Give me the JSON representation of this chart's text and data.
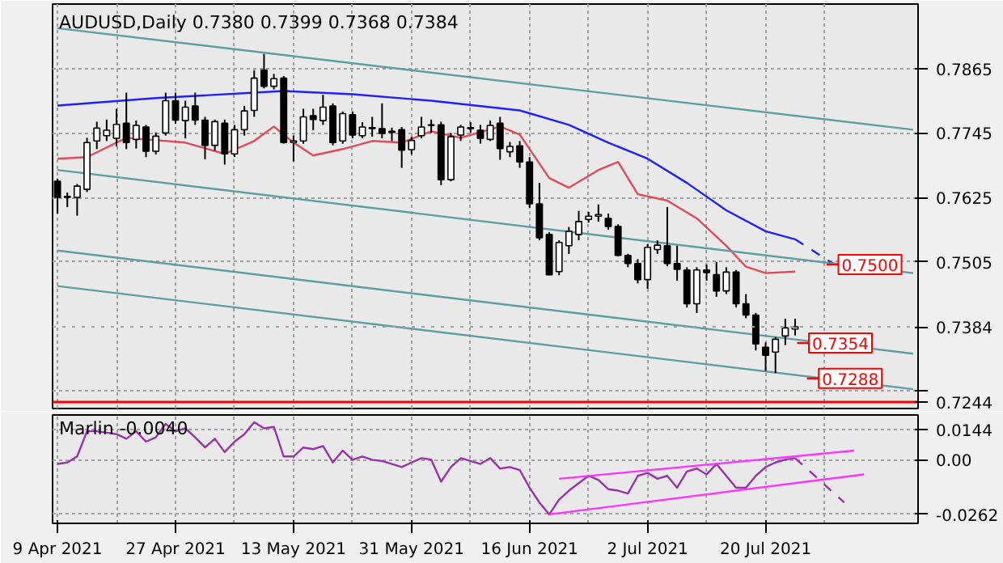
{
  "chart_data": [
    {
      "type": "candlestick",
      "title": "AUDUSD,Daily 0.7380 0.7399 0.7368 0.7384",
      "categories": [
        null,
        null,
        null,
        null,
        null,
        null,
        null,
        null,
        null,
        null,
        null,
        null,
        null,
        null,
        null,
        null,
        null,
        null,
        null,
        null,
        null,
        null,
        null,
        null,
        null,
        null,
        null,
        null,
        null,
        null,
        null,
        null,
        null,
        null,
        null,
        null,
        null,
        null,
        null,
        null,
        null,
        null,
        null,
        null,
        null,
        null,
        null,
        null,
        null,
        null,
        null,
        null,
        null,
        null,
        null,
        null,
        null,
        null,
        null,
        null,
        null,
        null,
        null,
        null,
        null,
        null,
        null,
        null,
        null,
        null,
        null,
        null,
        null,
        null,
        null,
        null,
        null,
        null,
        null,
        null,
        null,
        null,
        null,
        null,
        null,
        null,
        null,
        null
      ],
      "ohlc": [
        [
          0.7655,
          0.766,
          0.7595,
          0.7625
        ],
        [
          0.7627,
          0.7634,
          0.7607,
          0.7625
        ],
        [
          0.7625,
          0.765,
          0.7591,
          0.7646
        ],
        [
          0.764,
          0.7736,
          0.7635,
          0.7727
        ],
        [
          0.773,
          0.7766,
          0.7715,
          0.7754
        ],
        [
          0.774,
          0.777,
          0.773,
          0.775
        ],
        [
          0.7735,
          0.779,
          0.772,
          0.7761
        ],
        [
          0.7763,
          0.782,
          0.7715,
          0.7727
        ],
        [
          0.7733,
          0.7768,
          0.7716,
          0.7759
        ],
        [
          0.7756,
          0.776,
          0.77,
          0.7711
        ],
        [
          0.7711,
          0.7746,
          0.7705,
          0.7739
        ],
        [
          0.7745,
          0.782,
          0.774,
          0.7805
        ],
        [
          0.7805,
          0.782,
          0.7762,
          0.7769
        ],
        [
          0.7768,
          0.7805,
          0.7735,
          0.7793
        ],
        [
          0.7795,
          0.782,
          0.776,
          0.7769
        ],
        [
          0.7769,
          0.7775,
          0.7696,
          0.7722
        ],
        [
          0.7722,
          0.777,
          0.7712,
          0.7766
        ],
        [
          0.7763,
          0.777,
          0.7686,
          0.7706
        ],
        [
          0.7706,
          0.776,
          0.77,
          0.7751
        ],
        [
          0.7751,
          0.7795,
          0.774,
          0.7786
        ],
        [
          0.7787,
          0.7862,
          0.7775,
          0.7847
        ],
        [
          0.7862,
          0.7892,
          0.7828,
          0.7832
        ],
        [
          0.7832,
          0.7855,
          0.7826,
          0.7846
        ],
        [
          0.7847,
          0.7851,
          0.7725,
          0.7727
        ],
        [
          0.7727,
          0.774,
          0.7692,
          0.773
        ],
        [
          0.773,
          0.779,
          0.7725,
          0.7775
        ],
        [
          0.7777,
          0.779,
          0.775,
          0.777
        ],
        [
          0.7768,
          0.7816,
          0.776,
          0.7793
        ],
        [
          0.7795,
          0.78,
          0.7722,
          0.7727
        ],
        [
          0.773,
          0.7785,
          0.7725,
          0.7781
        ],
        [
          0.7779,
          0.7785,
          0.7735,
          0.7741
        ],
        [
          0.774,
          0.7765,
          0.7735,
          0.7756
        ],
        [
          0.7755,
          0.7775,
          0.7738,
          0.7753
        ],
        [
          0.7753,
          0.78,
          0.7735,
          0.7744
        ],
        [
          0.7748,
          0.7755,
          0.773,
          0.7746
        ],
        [
          0.7751,
          0.7756,
          0.768,
          0.7713
        ],
        [
          0.7714,
          0.7738,
          0.7705,
          0.7731
        ],
        [
          0.774,
          0.7775,
          0.7735,
          0.7756
        ],
        [
          0.776,
          0.777,
          0.7745,
          0.7759
        ],
        [
          0.776,
          0.7766,
          0.7648,
          0.7658
        ],
        [
          0.7658,
          0.7745,
          0.7655,
          0.7738
        ],
        [
          0.7741,
          0.776,
          0.773,
          0.7756
        ],
        [
          0.7755,
          0.7765,
          0.7745,
          0.7753
        ],
        [
          0.775,
          0.776,
          0.7725,
          0.7735
        ],
        [
          0.7733,
          0.7768,
          0.773,
          0.7759
        ],
        [
          0.7763,
          0.7775,
          0.7695,
          0.7716
        ],
        [
          0.771,
          0.7728,
          0.77,
          0.772
        ],
        [
          0.7721,
          0.773,
          0.768,
          0.7691
        ],
        [
          0.7691,
          0.77,
          0.7605,
          0.7613
        ],
        [
          0.7613,
          0.7652,
          0.7545,
          0.755
        ],
        [
          0.7556,
          0.756,
          0.748,
          0.7481
        ],
        [
          0.7487,
          0.7545,
          0.748,
          0.7541
        ],
        [
          0.7535,
          0.757,
          0.752,
          0.7562
        ],
        [
          0.7556,
          0.76,
          0.7545,
          0.758
        ],
        [
          0.7584,
          0.7598,
          0.7578,
          0.759
        ],
        [
          0.759,
          0.7612,
          0.758,
          0.7593
        ],
        [
          0.7586,
          0.7595,
          0.7565,
          0.7571
        ],
        [
          0.7571,
          0.7575,
          0.7515,
          0.7517
        ],
        [
          0.7517,
          0.752,
          0.7495,
          0.7502
        ],
        [
          0.7502,
          0.751,
          0.7465,
          0.7472
        ],
        [
          0.7472,
          0.7538,
          0.7455,
          0.7532
        ],
        [
          0.7528,
          0.7545,
          0.752,
          0.7536
        ],
        [
          0.7535,
          0.7607,
          0.7497,
          0.7502
        ],
        [
          0.7502,
          0.7535,
          0.747,
          0.7491
        ],
        [
          0.749,
          0.7495,
          0.742,
          0.7427
        ],
        [
          0.7427,
          0.7495,
          0.741,
          0.749
        ],
        [
          0.749,
          0.75,
          0.747,
          0.7485
        ],
        [
          0.7481,
          0.7505,
          0.744,
          0.7451
        ],
        [
          0.7451,
          0.7495,
          0.7445,
          0.7486
        ],
        [
          0.7486,
          0.749,
          0.742,
          0.7427
        ],
        [
          0.7427,
          0.7445,
          0.74,
          0.7406
        ],
        [
          0.7406,
          0.741,
          0.734,
          0.7352
        ],
        [
          0.7346,
          0.7355,
          0.7302,
          0.7331
        ],
        [
          0.7337,
          0.7365,
          0.7298,
          0.7361
        ],
        [
          0.7367,
          0.7399,
          0.735,
          0.7382
        ],
        [
          0.738,
          0.7399,
          0.7368,
          0.7384
        ],
        null,
        null,
        null,
        null,
        null,
        null,
        null,
        null,
        null,
        null,
        null,
        null
      ],
      "series": [
        {
          "type": "line",
          "color": "#2020ff",
          "values": [
            0.7796,
            null,
            null,
            null,
            null,
            null,
            null,
            null,
            null,
            null,
            0.781,
            null,
            null,
            null,
            null,
            null,
            null,
            null,
            null,
            null,
            0.782,
            null,
            null,
            0.7823,
            null,
            null,
            null,
            null,
            null,
            null,
            0.7817,
            null,
            null,
            null,
            null,
            null,
            null,
            null,
            0.7805,
            null,
            null,
            null,
            null,
            null,
            null,
            null,
            null,
            0.7787,
            null,
            null,
            null,
            null,
            0.776,
            null,
            null,
            null,
            0.7727,
            null,
            null,
            null,
            0.7697,
            null,
            null,
            null,
            0.7652,
            null,
            null,
            null,
            0.7601,
            null,
            null,
            null,
            0.7562,
            null,
            null,
            0.7547,
            null,
            null,
            null,
            null,
            null,
            null,
            null,
            null,
            null,
            null,
            null,
            null
          ]
        },
        {
          "type": "line",
          "color": "#2020ff",
          "line_style": "dashed",
          "values": [
            null,
            null,
            null,
            null,
            null,
            null,
            null,
            null,
            null,
            null,
            null,
            null,
            null,
            null,
            null,
            null,
            null,
            null,
            null,
            null,
            null,
            null,
            null,
            null,
            null,
            null,
            null,
            null,
            null,
            null,
            null,
            null,
            null,
            null,
            null,
            null,
            null,
            null,
            null,
            null,
            null,
            null,
            null,
            null,
            null,
            null,
            null,
            null,
            null,
            null,
            null,
            null,
            null,
            null,
            null,
            null,
            null,
            null,
            null,
            null,
            null,
            null,
            null,
            null,
            null,
            null,
            null,
            null,
            null,
            null,
            null,
            null,
            null,
            null,
            null,
            0.7547,
            null,
            null,
            null,
            0.75,
            null,
            null,
            null,
            null,
            null,
            null,
            null,
            null
          ]
        },
        {
          "type": "line",
          "color": "#e04a5a",
          "values": [
            0.7697,
            null,
            null,
            0.77,
            null,
            null,
            null,
            0.7736,
            null,
            null,
            null,
            null,
            null,
            0.7727,
            null,
            null,
            null,
            0.7706,
            null,
            null,
            0.773,
            null,
            0.7757,
            null,
            0.7727,
            null,
            0.7703,
            null,
            null,
            0.7715,
            null,
            null,
            0.773,
            null,
            null,
            0.7727,
            null,
            null,
            0.7748,
            null,
            null,
            0.7736,
            null,
            null,
            null,
            0.7757,
            null,
            0.7742,
            null,
            null,
            0.7661,
            null,
            0.7643,
            null,
            null,
            0.7676,
            null,
            0.7691,
            null,
            0.7631,
            null,
            null,
            0.7619,
            null,
            null,
            0.7586,
            null,
            null,
            0.7535,
            null,
            0.7496,
            null,
            0.7484,
            null,
            null,
            0.7487,
            null,
            null,
            null,
            null,
            null,
            null,
            null,
            null,
            null,
            null,
            null,
            null
          ]
        },
        {
          "type": "line",
          "color": "#5f9ea0",
          "values": [
            0.794,
            null,
            null,
            null,
            null,
            null,
            null,
            null,
            null,
            null,
            null,
            null,
            null,
            null,
            null,
            null,
            null,
            null,
            null,
            null,
            null,
            null,
            null,
            null,
            null,
            null,
            null,
            null,
            null,
            null,
            null,
            null,
            null,
            null,
            null,
            null,
            null,
            null,
            null,
            null,
            null,
            null,
            null,
            null,
            null,
            null,
            null,
            null,
            null,
            null,
            null,
            null,
            null,
            null,
            null,
            null,
            null,
            null,
            null,
            null,
            null,
            null,
            null,
            null,
            null,
            null,
            null,
            null,
            null,
            null,
            null,
            null,
            null,
            null,
            null,
            null,
            null,
            null,
            null,
            null,
            null,
            null,
            null,
            null,
            null,
            null,
            null,
            0.7751
          ]
        },
        {
          "type": "line",
          "color": "#5f9ea0",
          "values": [
            0.7676,
            null,
            null,
            null,
            null,
            null,
            null,
            null,
            null,
            null,
            null,
            null,
            null,
            null,
            null,
            null,
            null,
            null,
            null,
            null,
            null,
            null,
            null,
            null,
            null,
            null,
            null,
            null,
            null,
            null,
            null,
            null,
            null,
            null,
            null,
            null,
            null,
            null,
            null,
            null,
            null,
            null,
            null,
            null,
            null,
            null,
            null,
            null,
            null,
            null,
            null,
            null,
            null,
            null,
            null,
            null,
            null,
            null,
            null,
            null,
            null,
            null,
            null,
            null,
            null,
            null,
            null,
            null,
            null,
            null,
            null,
            null,
            null,
            null,
            null,
            null,
            null,
            null,
            null,
            null,
            null,
            null,
            null,
            null,
            null,
            null,
            null,
            0.7484
          ]
        },
        {
          "type": "line",
          "color": "#5f9ea0",
          "values": [
            0.7526,
            null,
            null,
            null,
            null,
            null,
            null,
            null,
            null,
            null,
            null,
            null,
            null,
            null,
            null,
            null,
            null,
            null,
            null,
            null,
            null,
            null,
            null,
            null,
            null,
            null,
            null,
            null,
            null,
            null,
            null,
            null,
            null,
            null,
            null,
            null,
            null,
            null,
            null,
            null,
            null,
            null,
            null,
            null,
            null,
            null,
            null,
            null,
            null,
            null,
            null,
            null,
            null,
            null,
            null,
            null,
            null,
            null,
            null,
            null,
            null,
            null,
            null,
            null,
            null,
            null,
            null,
            null,
            null,
            null,
            null,
            null,
            null,
            null,
            null,
            null,
            null,
            null,
            null,
            null,
            null,
            null,
            null,
            null,
            null,
            null,
            null,
            0.7334
          ]
        },
        {
          "type": "line",
          "color": "#5f9ea0",
          "values": [
            0.746,
            null,
            null,
            null,
            null,
            null,
            null,
            null,
            null,
            null,
            null,
            null,
            null,
            null,
            null,
            null,
            null,
            null,
            null,
            null,
            null,
            null,
            null,
            null,
            null,
            null,
            null,
            null,
            null,
            null,
            null,
            null,
            null,
            null,
            null,
            null,
            null,
            null,
            null,
            null,
            null,
            null,
            null,
            null,
            null,
            null,
            null,
            null,
            null,
            null,
            null,
            null,
            null,
            null,
            null,
            null,
            null,
            null,
            null,
            null,
            null,
            null,
            null,
            null,
            null,
            null,
            null,
            null,
            null,
            null,
            null,
            null,
            null,
            null,
            null,
            null,
            null,
            null,
            null,
            null,
            null,
            null,
            null,
            null,
            null,
            null,
            null,
            0.7268
          ]
        }
      ],
      "ylim": [
        0.7232,
        0.7985
      ],
      "yticks": [
        0.7865,
        0.7745,
        0.7625,
        0.7505,
        {
          "value": 0.7265,
          "label": null
        }
      ],
      "ref_lines": [
        {
          "axis": "y",
          "value": 0.7384,
          "label": "0.7384",
          "color": "#a0a0a0",
          "line_style": "dotted"
        },
        {
          "axis": "y",
          "value": 0.7244,
          "label": "0.7244",
          "color": "#ff0000",
          "line_style": "solid"
        }
      ],
      "annotations": [
        {
          "text": "0.7500",
          "y": 0.75
        },
        {
          "text": "0.7354",
          "y": 0.7354
        },
        {
          "text": "0.7288",
          "y": 0.7288
        }
      ],
      "grid": true,
      "tick_labels": "y"
    },
    {
      "type": "line",
      "title": "Marlin -0.0040",
      "categories": [
        "9 Apr 2021",
        null,
        null,
        null,
        null,
        null,
        null,
        null,
        null,
        null,
        null,
        null,
        "27 Apr 2021",
        null,
        null,
        null,
        null,
        null,
        null,
        null,
        null,
        null,
        null,
        null,
        "13 May 2021",
        null,
        null,
        null,
        null,
        null,
        null,
        null,
        null,
        null,
        null,
        null,
        "31 May 2021",
        null,
        null,
        null,
        null,
        null,
        null,
        null,
        null,
        null,
        null,
        null,
        "16 Jun 2021",
        null,
        null,
        null,
        null,
        null,
        null,
        null,
        null,
        null,
        null,
        null,
        "2 Jul 2021",
        null,
        null,
        null,
        null,
        null,
        null,
        null,
        null,
        null,
        null,
        null,
        "20 Jul 2021",
        null,
        null,
        null,
        null,
        null,
        null,
        null,
        null,
        null,
        null,
        null,
        null,
        null,
        null,
        null
      ],
      "series": [
        {
          "color": "#9933aa",
          "values": [
            -0.002,
            -0.0013,
            0.0016,
            0.0137,
            0.0137,
            0.013,
            0.0123,
            0.0101,
            0.0137,
            0.0087,
            0.0108,
            0.0172,
            0.0137,
            0.0151,
            0.0108,
            0.0059,
            0.0101,
            0.0037,
            0.0087,
            0.0123,
            0.018,
            0.0151,
            0.0158,
            0.0016,
            0.0016,
            0.0059,
            0.0051,
            0.0066,
            -0.0013,
            0.0044,
            0.0,
            0.0016,
            0.0,
            -0.0006,
            -0.002,
            -0.0035,
            -0.0013,
            0.0008,
            0.0001,
            -0.0105,
            -0.0035,
            0.0008,
            -0.0006,
            -0.002,
            0.0008,
            -0.0042,
            -0.0035,
            -0.0049,
            -0.0134,
            -0.0205,
            -0.0262,
            -0.0191,
            -0.0148,
            -0.0112,
            -0.0077,
            -0.0097,
            -0.0141,
            -0.0148,
            -0.0162,
            -0.0077,
            -0.0063,
            -0.0091,
            -0.0077,
            -0.0134,
            -0.0056,
            -0.0042,
            -0.007,
            -0.002,
            -0.0077,
            -0.0134,
            -0.0134,
            -0.0077,
            -0.0035,
            -0.0013,
            0.0001,
            0.0008,
            null,
            null,
            null,
            null,
            null,
            null,
            null,
            null,
            null,
            null,
            null,
            null
          ]
        },
        {
          "color": "#9933aa",
          "line_style": "dashed",
          "values": [
            null,
            null,
            null,
            null,
            null,
            null,
            null,
            null,
            null,
            null,
            null,
            null,
            null,
            null,
            null,
            null,
            null,
            null,
            null,
            null,
            null,
            null,
            null,
            null,
            null,
            null,
            null,
            null,
            null,
            null,
            null,
            null,
            null,
            null,
            null,
            null,
            null,
            null,
            null,
            null,
            null,
            null,
            null,
            null,
            null,
            null,
            null,
            null,
            null,
            null,
            null,
            null,
            null,
            null,
            null,
            null,
            null,
            null,
            null,
            null,
            null,
            null,
            null,
            null,
            null,
            null,
            null,
            null,
            null,
            null,
            null,
            null,
            null,
            null,
            null,
            0.0008,
            null,
            null,
            null,
            null,
            -0.0205,
            null,
            null,
            null,
            null,
            null,
            null,
            null
          ]
        },
        {
          "color": "#ff33ff",
          "values": [
            null,
            null,
            null,
            null,
            null,
            null,
            null,
            null,
            null,
            null,
            null,
            null,
            null,
            null,
            null,
            null,
            null,
            null,
            null,
            null,
            null,
            null,
            null,
            null,
            null,
            null,
            null,
            null,
            null,
            null,
            null,
            null,
            null,
            null,
            null,
            null,
            null,
            null,
            null,
            null,
            null,
            null,
            null,
            null,
            null,
            null,
            null,
            null,
            null,
            null,
            null,
            -0.0091,
            null,
            null,
            null,
            null,
            null,
            null,
            null,
            null,
            null,
            null,
            null,
            null,
            null,
            null,
            null,
            null,
            null,
            null,
            null,
            null,
            null,
            null,
            null,
            null,
            null,
            null,
            null,
            null,
            null,
            0.0044,
            null,
            null,
            null,
            null,
            null,
            null
          ]
        },
        {
          "color": "#ff33ff",
          "values": [
            null,
            null,
            null,
            null,
            null,
            null,
            null,
            null,
            null,
            null,
            null,
            null,
            null,
            null,
            null,
            null,
            null,
            null,
            null,
            null,
            null,
            null,
            null,
            null,
            null,
            null,
            null,
            null,
            null,
            null,
            null,
            null,
            null,
            null,
            null,
            null,
            null,
            null,
            null,
            null,
            null,
            null,
            null,
            null,
            null,
            null,
            null,
            null,
            null,
            null,
            -0.0262,
            null,
            null,
            null,
            null,
            null,
            null,
            null,
            null,
            null,
            null,
            null,
            null,
            null,
            null,
            null,
            null,
            null,
            null,
            null,
            null,
            null,
            null,
            null,
            null,
            null,
            null,
            null,
            null,
            null,
            null,
            null,
            -0.007,
            null,
            null,
            null,
            null,
            null
          ]
        }
      ],
      "ylim": [
        -0.0305,
        0.0215
      ],
      "yticks": [
        0.0144,
        {
          "value": 0,
          "label": "0.00"
        },
        -0.0262
      ],
      "grid": true
    }
  ]
}
